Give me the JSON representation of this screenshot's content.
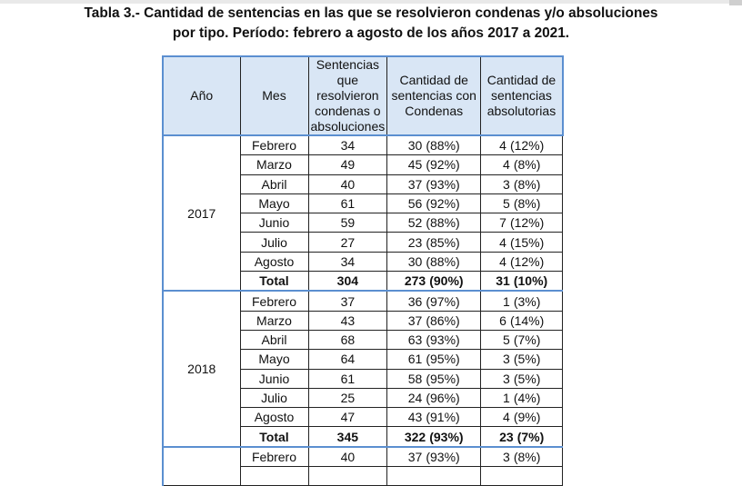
{
  "caption": {
    "line1": "Tabla 3.- Cantidad de sentencias en las que se resolvieron condenas y/o absoluciones",
    "line2": "por tipo. Período: febrero a agosto de los años 2017 a 2021."
  },
  "headers": {
    "year": "Año",
    "month": "Mes",
    "total_sentences": "Sentencias que resolvieron condenas o absoluciones",
    "convictions": "Cantidad de sentencias con Condenas",
    "acquittals": "Cantidad de sentencias absolutorias"
  },
  "years": [
    {
      "year": "2017",
      "rows": [
        {
          "month": "Febrero",
          "total": "34",
          "cond": "30",
          "cond_pct": "(88%)",
          "abs": "4",
          "abs_pct": "(12%)"
        },
        {
          "month": "Marzo",
          "total": "49",
          "cond": "45",
          "cond_pct": "(92%)",
          "abs": "4",
          "abs_pct": "(8%)"
        },
        {
          "month": "Abril",
          "total": "40",
          "cond": "37",
          "cond_pct": "(93%)",
          "abs": "3",
          "abs_pct": "(8%)"
        },
        {
          "month": "Mayo",
          "total": "61",
          "cond": "56",
          "cond_pct": "(92%)",
          "abs": "5",
          "abs_pct": "(8%)"
        },
        {
          "month": "Junio",
          "total": "59",
          "cond": "52",
          "cond_pct": "(88%)",
          "abs": "7",
          "abs_pct": "(12%)"
        },
        {
          "month": "Julio",
          "total": "27",
          "cond": "23",
          "cond_pct": "(85%)",
          "abs": "4",
          "abs_pct": "(15%)"
        },
        {
          "month": "Agosto",
          "total": "34",
          "cond": "30",
          "cond_pct": "(88%)",
          "abs": "4",
          "abs_pct": "(12%)"
        }
      ],
      "total": {
        "label": "Total",
        "total": "304",
        "cond": "273",
        "cond_pct": "(90%)",
        "abs": "31",
        "abs_pct": "(10%)"
      }
    },
    {
      "year": "2018",
      "rows": [
        {
          "month": "Febrero",
          "total": "37",
          "cond": "36",
          "cond_pct": "(97%)",
          "abs": "1",
          "abs_pct": "(3%)"
        },
        {
          "month": "Marzo",
          "total": "43",
          "cond": "37",
          "cond_pct": "(86%)",
          "abs": "6",
          "abs_pct": "(14%)"
        },
        {
          "month": "Abril",
          "total": "68",
          "cond": "63",
          "cond_pct": "(93%)",
          "abs": "5",
          "abs_pct": "(7%)"
        },
        {
          "month": "Mayo",
          "total": "64",
          "cond": "61",
          "cond_pct": "(95%)",
          "abs": "3",
          "abs_pct": "(5%)"
        },
        {
          "month": "Junio",
          "total": "61",
          "cond": "58",
          "cond_pct": "(95%)",
          "abs": "3",
          "abs_pct": "(5%)"
        },
        {
          "month": "Julio",
          "total": "25",
          "cond": "24",
          "cond_pct": "(96%)",
          "abs": "1",
          "abs_pct": "(4%)"
        },
        {
          "month": "Agosto",
          "total": "47",
          "cond": "43",
          "cond_pct": "(91%)",
          "abs": "4",
          "abs_pct": "(9%)"
        }
      ],
      "total": {
        "label": "Total",
        "total": "345",
        "cond": "322",
        "cond_pct": "(93%)",
        "abs": "23",
        "abs_pct": "(7%)"
      }
    }
  ],
  "partial_row": {
    "month": "Febrero",
    "total": "40",
    "cond": "37",
    "cond_pct": "(93%)",
    "abs": "3",
    "abs_pct": "(8%)"
  }
}
